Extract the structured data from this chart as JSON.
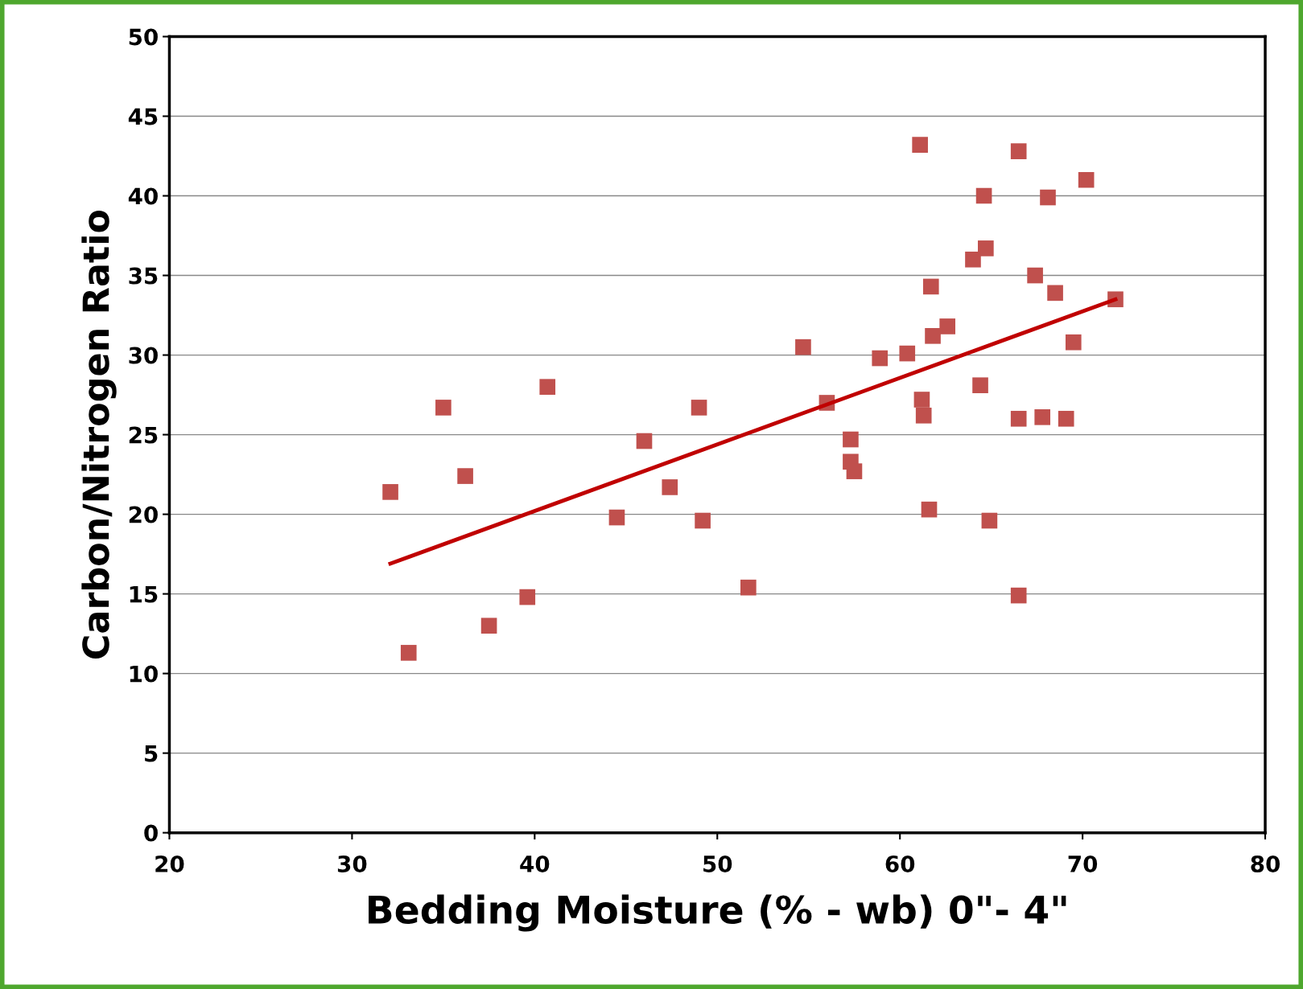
{
  "chart_data": {
    "type": "scatter",
    "xlabel": "Bedding Moisture (% - wb) 0\"- 4\"",
    "ylabel": "Carbon/Nitrogen Ratio",
    "xlim": [
      20,
      80
    ],
    "xticks": [
      20,
      30,
      40,
      50,
      60,
      70,
      80
    ],
    "ylim": [
      0,
      50
    ],
    "yticks": [
      0,
      5,
      10,
      15,
      20,
      25,
      30,
      35,
      40,
      45,
      50
    ],
    "grid": "y",
    "legend": false,
    "marker": "square",
    "series": [
      {
        "color": "#c0504d",
        "x": [
          32.1,
          33.1,
          35.0,
          36.2,
          37.5,
          39.6,
          40.7,
          44.5,
          46.0,
          47.4,
          49.0,
          49.2,
          51.7,
          54.7,
          56.0,
          57.3,
          57.3,
          57.5,
          58.9,
          60.4,
          61.1,
          61.2,
          61.3,
          61.6,
          61.7,
          61.8,
          62.6,
          64.0,
          64.4,
          64.6,
          64.7,
          64.9,
          66.5,
          66.5,
          66.5,
          67.4,
          67.8,
          68.1,
          68.5,
          69.1,
          69.5,
          70.2,
          71.8
        ],
        "values": [
          21.4,
          11.3,
          26.7,
          22.4,
          13.0,
          14.8,
          28.0,
          19.8,
          24.6,
          21.7,
          26.7,
          19.6,
          15.4,
          30.5,
          27.0,
          24.7,
          23.3,
          22.7,
          29.8,
          30.1,
          43.2,
          27.2,
          26.2,
          20.3,
          34.3,
          31.2,
          31.8,
          36.0,
          28.1,
          40.0,
          36.7,
          19.6,
          14.9,
          42.8,
          26.0,
          35.0,
          26.1,
          39.9,
          33.9,
          26.0,
          30.8,
          41.0,
          33.5
        ]
      },
      {
        "type": "line",
        "color": "#c00000",
        "marker": "none",
        "line_style": "solid",
        "x": [
          32.1,
          71.8
        ],
        "values": [
          16.9,
          33.5
        ]
      }
    ]
  }
}
